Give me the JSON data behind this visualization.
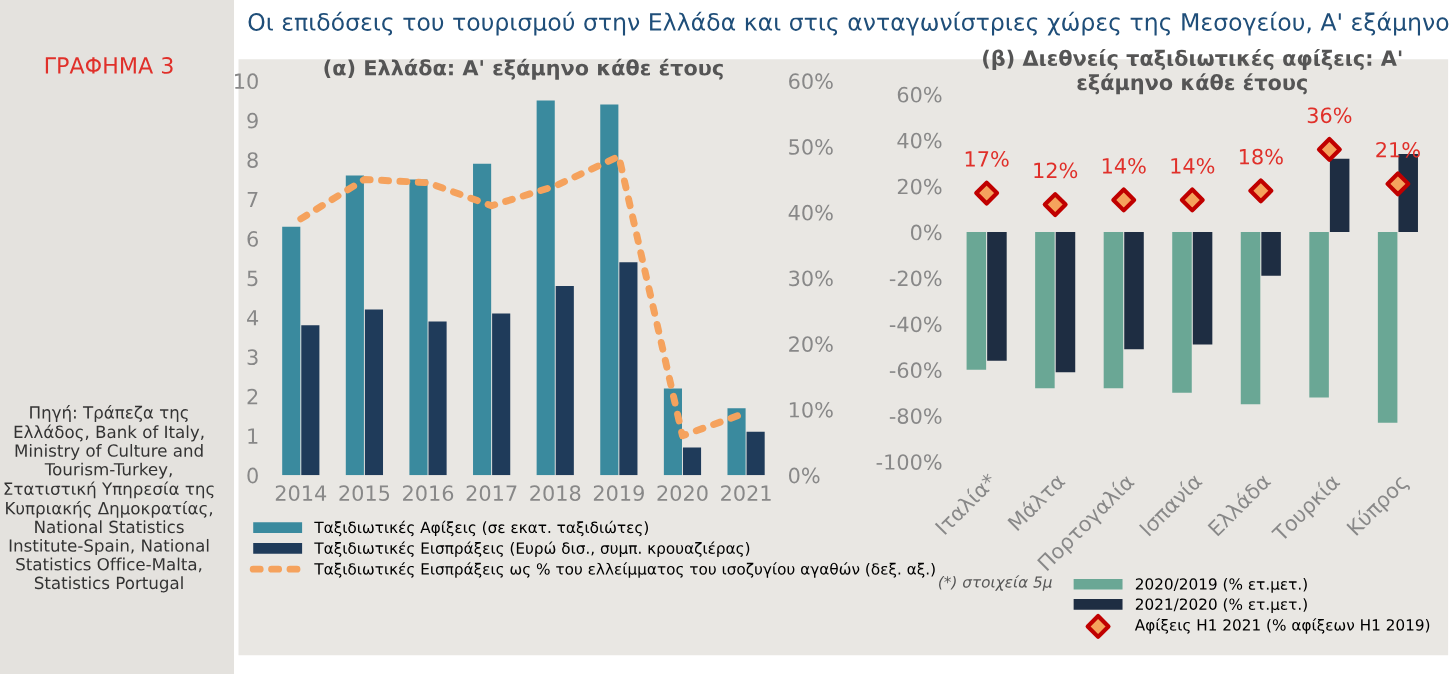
{
  "chart_data": [
    {
      "type": "bar",
      "title": "(α) Ελλάδα: Α' εξάμηνο κάθε έτους",
      "categories": [
        "2014",
        "2015",
        "2016",
        "2017",
        "2018",
        "2019",
        "2020",
        "2021"
      ],
      "series": [
        {
          "name": "Ταξιδιωτικές Αφίξεις (σε εκατ. ταξιδιώτες)",
          "color": "#3a8a9e",
          "values": [
            6.3,
            7.6,
            7.5,
            7.9,
            9.5,
            9.4,
            2.2,
            1.7
          ]
        },
        {
          "name": "Ταξιδιωτικές Εισπράξεις (Ευρώ δισ., συμπ. κρουαζιέρας)",
          "color": "#1f3b5a",
          "values": [
            3.8,
            4.2,
            3.9,
            4.1,
            4.8,
            5.4,
            0.7,
            1.1
          ]
        },
        {
          "name": "Ταξιδιωτικές Εισπράξεις ως % του ελλείμματος του ισοζυγίου αγαθών (δεξ. αξ.)",
          "type": "line",
          "axis": "y2",
          "line_style": "dotted",
          "color": "#f5a25d",
          "values": [
            39,
            45,
            44.5,
            41,
            44,
            48.5,
            6,
            9.5
          ]
        }
      ],
      "ylim": [
        0,
        10
      ],
      "yticks": [
        0,
        1,
        2,
        3,
        4,
        5,
        6,
        7,
        8,
        9,
        10
      ],
      "y2lim": [
        0,
        60
      ],
      "y2ticks": [
        {
          "value": 0,
          "label": "0%"
        },
        {
          "value": 10,
          "label": "10%"
        },
        {
          "value": 20,
          "label": "20%"
        },
        {
          "value": 30,
          "label": "30%"
        },
        {
          "value": 40,
          "label": "40%"
        },
        {
          "value": 50,
          "label": "50%"
        },
        {
          "value": 60,
          "label": "60%"
        }
      ],
      "legend": "bottom",
      "grid": false,
      "annotations": [
        "ΓΡΑΦΗΜΑ 3",
        "Οι επιδόσεις του τουρισμού στην Ελλάδα και στις ανταγωνίστριες χώρες της Μεσογείου, Α' εξάμηνο",
        "Πηγή: Τράπεζα της Ελλάδος, Bank of Italy, Ministry of Culture and Tourism-Turkey, Στατιστική Υπηρεσία της Κυπριακής Δημοκρατίας, National Statistics Institute-Spain, National Statistics Office-Malta, Statistics Portugal"
      ]
    },
    {
      "type": "bar",
      "title": "(β) Διεθνείς ταξιδιωτικές αφίξεις: Α' εξάμηνο κάθε έτους",
      "categories": [
        "Ιταλία*",
        "Μάλτα",
        "Πορτογαλία",
        "Ισπανία",
        "Ελλάδα",
        "Τουρκία",
        "Κύπρος"
      ],
      "series": [
        {
          "name": "2020/2019 (% ετ.μετ.)",
          "color": "#6aa795",
          "values": [
            -60,
            -68,
            -68,
            -70,
            -75,
            -72,
            -83
          ]
        },
        {
          "name": "2021/2020 (% ετ.μετ.)",
          "color": "#1e2d42",
          "values": [
            -56,
            -61,
            -51,
            -49,
            -19,
            32,
            34
          ]
        },
        {
          "name": "Αφίξεις Η1 2021 (% αφίξεων Η1 2019)",
          "type": "scatter",
          "marker": "diamond",
          "color": "#c00000",
          "values": [
            17,
            12,
            14,
            14,
            18,
            36,
            21
          ],
          "value_labels": [
            "17%",
            "12%",
            "14%",
            "14%",
            "18%",
            "36%",
            "21%"
          ]
        }
      ],
      "ylim": [
        -100,
        60
      ],
      "yticks": [
        {
          "value": -100,
          "label": "-100%"
        },
        {
          "value": -80,
          "label": "-80%"
        },
        {
          "value": -60,
          "label": "-60%"
        },
        {
          "value": -40,
          "label": "-40%"
        },
        {
          "value": -20,
          "label": "-20%"
        },
        {
          "value": 0,
          "label": "0%"
        },
        {
          "value": 20,
          "label": "20%"
        },
        {
          "value": 40,
          "label": "40%"
        },
        {
          "value": 60,
          "label": "60%"
        }
      ],
      "legend": "bottom",
      "grid": false,
      "annotations": [
        "(*) στοιχεία 5μ"
      ]
    }
  ]
}
